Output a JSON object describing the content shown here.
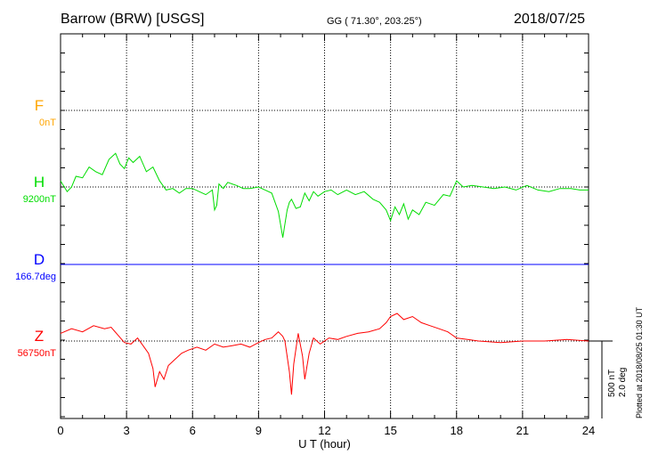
{
  "header": {
    "station": "Barrow (BRW)  [USGS]",
    "coords": "GG ( 71.30°, 203.25°)",
    "date": "2018/07/25"
  },
  "side": {
    "plotted": "Plotted at 2018/08/25 01:30 UT",
    "scale_nt": "500 nT",
    "scale_deg": "2.0 deg"
  },
  "colors": {
    "F": "#ffa500",
    "H": "#00dd00",
    "D": "#0000ff",
    "Z": "#ff0000",
    "grid": "#000000"
  },
  "chart_data": {
    "type": "line",
    "title": "Barrow (BRW)  [USGS]",
    "xlabel": "U T (hour)",
    "xlim": [
      0,
      24
    ],
    "xticks": [
      "0",
      "3",
      "6",
      "9",
      "12",
      "15",
      "18",
      "21",
      "24"
    ],
    "grid": true,
    "series": [
      {
        "name": "F",
        "label": "F",
        "baseline": "0nT",
        "unit": "nT",
        "values": []
      },
      {
        "name": "H",
        "label": "H",
        "baseline": "9200nT",
        "unit": "nT",
        "x": [
          0,
          0.3,
          0.5,
          0.7,
          1.0,
          1.3,
          1.6,
          1.9,
          2.2,
          2.5,
          2.7,
          2.9,
          3.1,
          3.3,
          3.6,
          3.9,
          4.2,
          4.5,
          4.8,
          5.1,
          5.4,
          5.7,
          6.0,
          6.3,
          6.6,
          6.9,
          7.0,
          7.1,
          7.2,
          7.4,
          7.6,
          7.8,
          8.0,
          8.3,
          8.6,
          9.0,
          9.3,
          9.6,
          9.9,
          10.1,
          10.3,
          10.4,
          10.5,
          10.7,
          10.9,
          11.1,
          11.3,
          11.5,
          11.7,
          12.0,
          12.3,
          12.6,
          13.0,
          13.4,
          13.8,
          14.2,
          14.5,
          14.8,
          15.0,
          15.2,
          15.4,
          15.6,
          15.8,
          16.0,
          16.3,
          16.6,
          17.0,
          17.4,
          17.7,
          18.0,
          18.3,
          18.7,
          19.2,
          19.7,
          20.2,
          20.7,
          21.2,
          21.7,
          22.2,
          22.7,
          23.2,
          23.6,
          24.0
        ],
        "values": [
          40,
          -30,
          0,
          70,
          60,
          130,
          100,
          80,
          180,
          220,
          150,
          120,
          190,
          160,
          200,
          100,
          130,
          40,
          -20,
          -10,
          -40,
          -10,
          -10,
          -30,
          -50,
          -20,
          -150,
          -120,
          20,
          -10,
          30,
          20,
          10,
          -10,
          -10,
          0,
          -20,
          -40,
          -160,
          -330,
          -150,
          -100,
          -80,
          -140,
          -130,
          -40,
          -90,
          -30,
          -60,
          -30,
          -20,
          -50,
          -20,
          -50,
          -30,
          -80,
          -100,
          -150,
          -220,
          -130,
          -180,
          -110,
          -210,
          -150,
          -180,
          -100,
          -120,
          -50,
          -60,
          40,
          0,
          10,
          0,
          -10,
          0,
          -20,
          10,
          -20,
          -30,
          -10,
          -10,
          -20,
          -20
        ]
      },
      {
        "name": "D",
        "label": "D",
        "baseline": "166.7deg",
        "unit": "deg",
        "x": [
          0,
          24
        ],
        "values": [
          0,
          0
        ]
      },
      {
        "name": "Z",
        "label": "Z",
        "baseline": "56750nT",
        "unit": "nT",
        "x": [
          0,
          0.5,
          1.0,
          1.5,
          2.0,
          2.3,
          2.6,
          2.9,
          3.2,
          3.5,
          3.8,
          4.0,
          4.2,
          4.3,
          4.5,
          4.7,
          4.9,
          5.2,
          5.5,
          5.8,
          6.2,
          6.6,
          7.0,
          7.4,
          7.8,
          8.2,
          8.6,
          9.0,
          9.3,
          9.6,
          9.9,
          10.1,
          10.2,
          10.4,
          10.5,
          10.6,
          10.8,
          11.0,
          11.1,
          11.3,
          11.5,
          11.8,
          12.2,
          12.6,
          13.0,
          13.5,
          14.0,
          14.5,
          14.8,
          15.0,
          15.3,
          15.6,
          16.0,
          16.4,
          16.8,
          17.2,
          17.6,
          18.0,
          18.5,
          19.0,
          20.0,
          21.0,
          22.0,
          23.0,
          24.0
        ],
        "values": [
          50,
          80,
          60,
          100,
          80,
          90,
          40,
          -10,
          -20,
          20,
          -40,
          -80,
          -180,
          -300,
          -200,
          -250,
          -160,
          -120,
          -80,
          -60,
          -40,
          -60,
          -20,
          -40,
          -30,
          -20,
          -40,
          -10,
          10,
          20,
          60,
          30,
          0,
          -200,
          -350,
          -150,
          50,
          -100,
          -250,
          -80,
          20,
          -20,
          20,
          10,
          30,
          50,
          60,
          80,
          120,
          160,
          180,
          140,
          160,
          120,
          100,
          80,
          60,
          20,
          10,
          0,
          -10,
          0,
          0,
          10,
          0
        ]
      }
    ]
  },
  "axis": {
    "xlabel": "U T (hour)",
    "ticks": [
      "0",
      "3",
      "6",
      "9",
      "12",
      "15",
      "18",
      "21",
      "24"
    ]
  }
}
